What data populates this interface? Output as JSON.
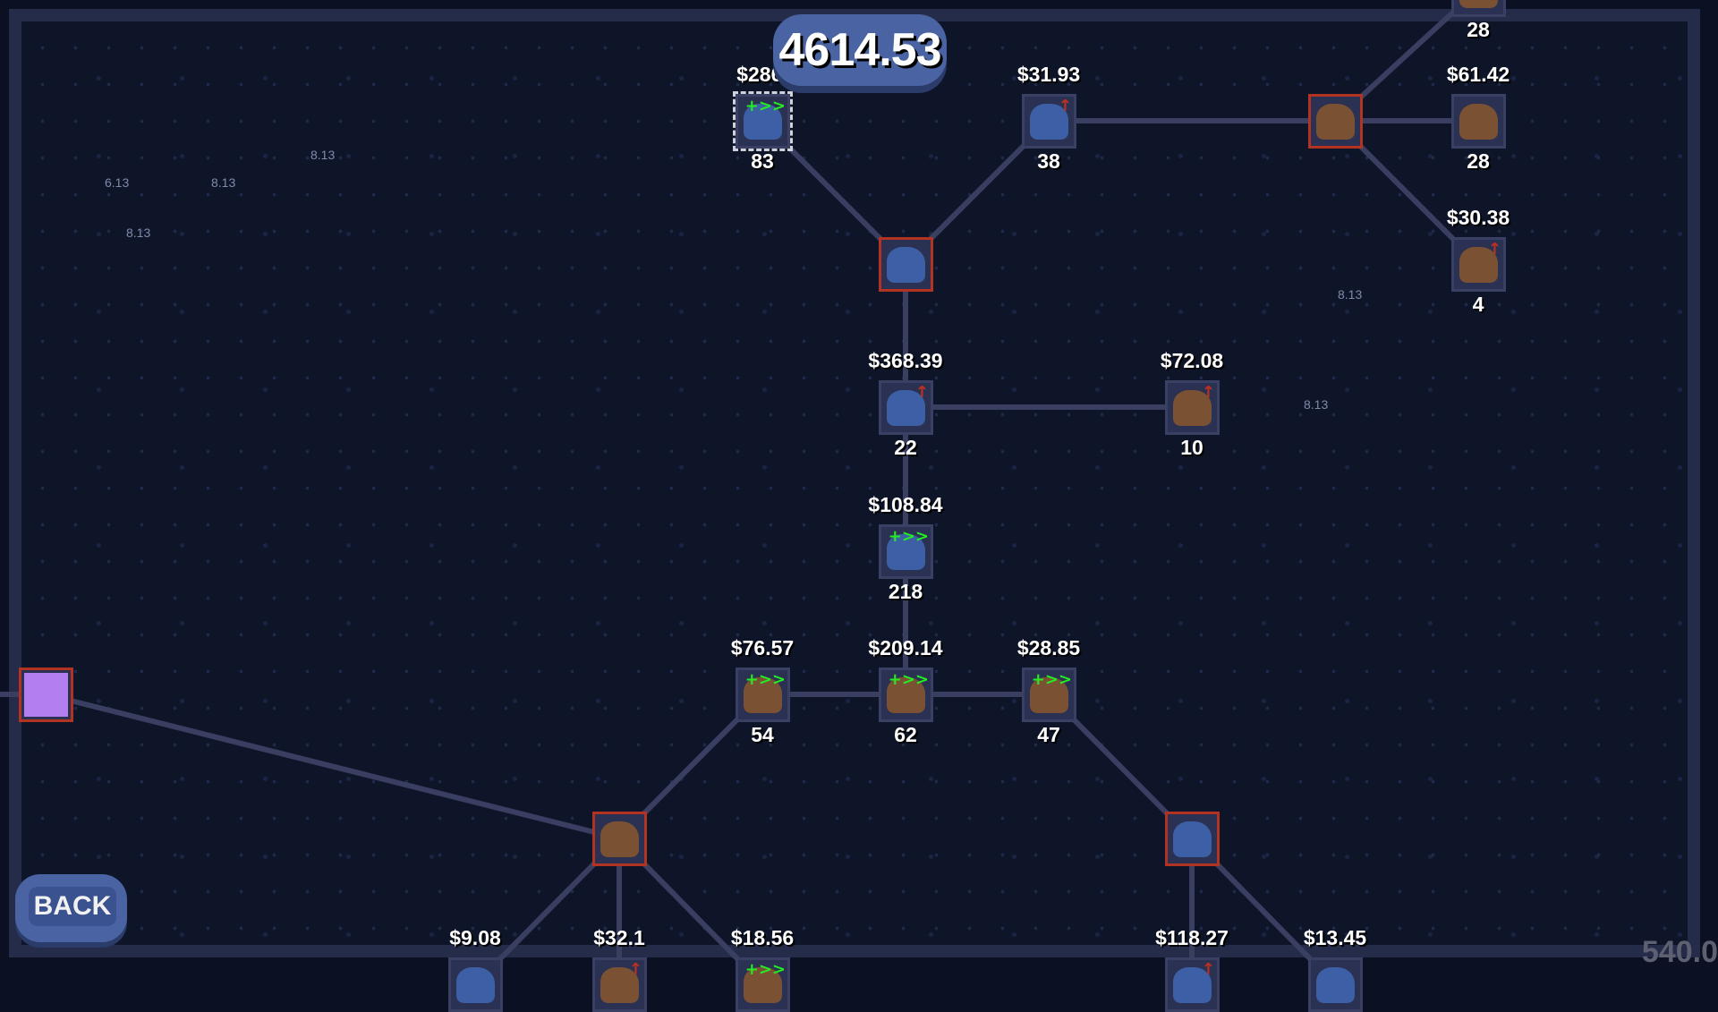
{
  "score": "4614.53",
  "back_label": "BACK",
  "corner_readout": "540.0",
  "floating_texts": [
    "6.13",
    "8.13",
    "8.13",
    "8.13",
    "8.13",
    "8.13"
  ],
  "colors": {
    "locked_border": "#b23322",
    "upgrade_green": "#22ee22",
    "upgrade_red": "#c03020",
    "panel": "#4a64a3"
  },
  "nodes": [
    {
      "price": "$286.",
      "count": "83",
      "art": "blue",
      "badge": "speed",
      "state": "selected"
    },
    {
      "price": "$31.93",
      "count": "38",
      "art": "blue",
      "badge": "up",
      "state": "normal"
    },
    {
      "price": "",
      "count": "",
      "art": "brown",
      "badge": "",
      "state": "locked"
    },
    {
      "price": "$61.42",
      "count": "28",
      "art": "brown",
      "badge": "",
      "state": "normal"
    },
    {
      "price": "",
      "count": "28",
      "art": "brown",
      "badge": "",
      "state": "normal"
    },
    {
      "price": "$30.38",
      "count": "4",
      "art": "brown",
      "badge": "up",
      "state": "normal"
    },
    {
      "price": "",
      "count": "",
      "art": "blue",
      "badge": "",
      "state": "locked"
    },
    {
      "price": "$368.39",
      "count": "22",
      "art": "blue",
      "badge": "up",
      "state": "normal"
    },
    {
      "price": "$72.08",
      "count": "10",
      "art": "brown",
      "badge": "up",
      "state": "normal"
    },
    {
      "price": "$108.84",
      "count": "218",
      "art": "blue",
      "badge": "speed",
      "state": "normal"
    },
    {
      "price": "$76.57",
      "count": "54",
      "art": "brown",
      "badge": "speed",
      "state": "normal"
    },
    {
      "price": "$209.14",
      "count": "62",
      "art": "brown",
      "badge": "speed",
      "state": "normal"
    },
    {
      "price": "$28.85",
      "count": "47",
      "art": "brown",
      "badge": "speed",
      "state": "normal"
    },
    {
      "price": "",
      "count": "",
      "art": "purple",
      "badge": "",
      "state": "locked"
    },
    {
      "price": "",
      "count": "",
      "art": "brown",
      "badge": "",
      "state": "locked"
    },
    {
      "price": "",
      "count": "",
      "art": "blue",
      "badge": "",
      "state": "locked"
    },
    {
      "price": "$9.08",
      "count": "",
      "art": "blue",
      "badge": "",
      "state": "normal"
    },
    {
      "price": "$32.1",
      "count": "",
      "art": "brown",
      "badge": "up",
      "state": "normal"
    },
    {
      "price": "$18.56",
      "count": "",
      "art": "brown",
      "badge": "speed",
      "state": "normal"
    },
    {
      "price": "$118.27",
      "count": "",
      "art": "blue",
      "badge": "up",
      "state": "normal"
    },
    {
      "price": "$13.45",
      "count": "",
      "art": "blue",
      "badge": "",
      "state": "normal"
    }
  ],
  "badge_glyphs": {
    "speed": "+>>",
    "up": "↑"
  }
}
